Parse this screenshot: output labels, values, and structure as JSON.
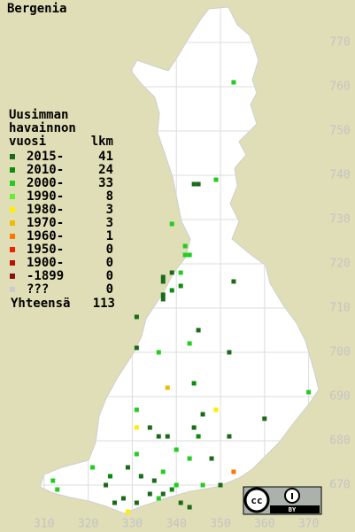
{
  "chart_data": {
    "type": "grid-map",
    "title": "Bergenia",
    "legend_title": [
      "Uusimman",
      "havainnon",
      "vuosi"
    ],
    "count_header": "lkm",
    "total_label": "Yhteensä",
    "total": 113,
    "license": "BY",
    "xlim": [
      300,
      380
    ],
    "ylim": [
      660,
      780
    ],
    "xticks": [
      310,
      320,
      330,
      340,
      350,
      360,
      370
    ],
    "yticks": [
      670,
      680,
      690,
      700,
      710,
      720,
      730,
      740,
      750,
      760,
      770
    ],
    "grid": true,
    "series": [
      {
        "name": "2015-",
        "color": "#1a6a1a",
        "count": 41,
        "x": [
          344,
          345,
          339,
          337,
          337,
          337,
          353,
          331,
          337,
          345,
          331,
          352,
          346,
          360,
          334,
          336,
          338,
          344,
          352,
          348,
          350,
          335,
          334,
          337,
          341,
          328,
          324,
          326,
          343,
          329,
          332,
          331
        ],
        "y": [
          738,
          738,
          718,
          717,
          716,
          713,
          716,
          708,
          712,
          705,
          701,
          700,
          686,
          685,
          683,
          681,
          681,
          683,
          681,
          676,
          670,
          671,
          668,
          668,
          666,
          667,
          670,
          666,
          665,
          674,
          672,
          666
        ]
      },
      {
        "name": "2010-",
        "color": "#0c8c0c",
        "count": 24,
        "x": [
          341,
          339,
          344,
          345,
          339,
          325
        ],
        "y": [
          715,
          714,
          693,
          681,
          669,
          672
        ]
      },
      {
        "name": "2000-",
        "color": "#22cc22",
        "count": 33,
        "x": [
          353,
          349,
          339,
          342,
          343,
          342,
          341,
          343,
          336,
          349,
          370,
          331,
          340,
          331,
          343,
          346,
          337,
          321,
          312,
          313,
          340,
          336
        ],
        "y": [
          761,
          739,
          729,
          724,
          722,
          722,
          718,
          702,
          700,
          687,
          691,
          687,
          678,
          677,
          676,
          670,
          673,
          674,
          671,
          669,
          670,
          667
        ]
      },
      {
        "name": "1990-",
        "color": "#66ee33",
        "count": 8,
        "x": [],
        "y": []
      },
      {
        "name": "1980-",
        "color": "#ffee00",
        "count": 3,
        "x": [
          349,
          331,
          329
        ],
        "y": [
          687,
          683,
          664
        ]
      },
      {
        "name": "1970-",
        "color": "#eebb00",
        "count": 3,
        "x": [
          338
        ],
        "y": [
          692
        ]
      },
      {
        "name": "1960-",
        "color": "#ff7700",
        "count": 1,
        "x": [
          353
        ],
        "y": [
          673
        ]
      },
      {
        "name": "1950-",
        "color": "#ee2200",
        "count": 0,
        "x": [],
        "y": []
      },
      {
        "name": "1900-",
        "color": "#bb1100",
        "count": 0,
        "x": [],
        "y": []
      },
      {
        "name": "-1899",
        "color": "#881111",
        "count": 0,
        "x": [],
        "y": []
      },
      {
        "name": "???",
        "color": "#cccccc",
        "count": 0,
        "x": [],
        "y": []
      }
    ]
  }
}
